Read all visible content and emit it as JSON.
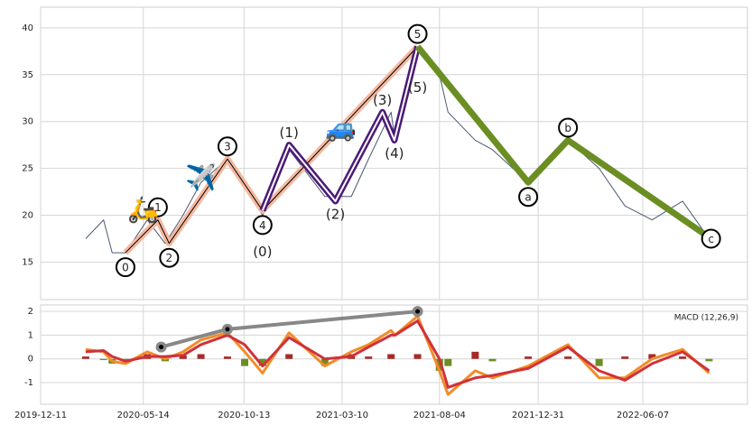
{
  "chart_data": [
    {
      "type": "line",
      "xlim": [
        "2019-12-11",
        "2022-11-12"
      ],
      "ylim": [
        11,
        42.2
      ],
      "yticks": [
        15,
        20,
        25,
        30,
        35,
        40
      ],
      "grid": true,
      "x": [
        "2020-02-17",
        "2020-03-15",
        "2020-03-28",
        "2020-04-17",
        "2020-05-20",
        "2020-06-16",
        "2020-07-13",
        "2020-08-09",
        "2020-09-18",
        "2020-10-14",
        "2020-11-10",
        "2020-12-20",
        "2021-02-12",
        "2021-03-24",
        "2021-04-19",
        "2021-05-23",
        "2021-05-29",
        "2021-07-02",
        "2021-08-04",
        "2021-08-17",
        "2021-09-27",
        "2021-10-23",
        "2021-12-16",
        "2022-02-14",
        "2022-04-02",
        "2022-05-11",
        "2022-06-21",
        "2022-08-06",
        "2022-09-15"
      ],
      "series": [
        {
          "color": "#4a5870",
          "values": [
            17.5,
            19.5,
            16,
            16,
            19.5,
            17,
            20,
            23.5,
            26,
            23,
            20,
            27,
            22,
            22,
            26,
            31,
            28,
            38,
            35,
            31,
            28,
            27,
            23.5,
            28,
            25,
            21,
            19.5,
            21.5,
            17.5
          ]
        }
      ],
      "waves": [
        {
          "color": "#f4b8a0",
          "x": [
            "2020-04-17",
            "2020-06-05",
            "2020-06-22",
            "2020-09-18",
            "2020-11-10",
            "2021-07-02"
          ],
          "values": [
            16,
            19.5,
            17,
            26,
            20.5,
            38
          ],
          "point_labels": [
            "0",
            "1",
            "2",
            "3",
            "4",
            "5"
          ]
        },
        {
          "color": "#4b1a78",
          "x": [
            "2020-11-10",
            "2020-12-20",
            "2021-02-28",
            "2021-05-10",
            "2021-05-28",
            "2021-07-02"
          ],
          "values": [
            20.5,
            27.5,
            21.5,
            31,
            28,
            38
          ],
          "point_labels": [
            "(0)",
            "(1)",
            "(2)",
            "(3)",
            "(4)",
            "(5)"
          ]
        },
        {
          "color": "#6b8e23",
          "x": [
            "2021-07-02",
            "2021-12-16",
            "2022-02-14",
            "2022-09-18"
          ],
          "values": [
            38,
            23.5,
            28,
            17.5
          ],
          "point_labels": [
            null,
            "a",
            "b",
            "c"
          ]
        }
      ],
      "icons": [
        {
          "text": "🛵",
          "x": "2020-05-14",
          "y": 20.5
        },
        {
          "text": "✈️",
          "x": "2020-08-09",
          "y": 23.9
        },
        {
          "text": "🚙",
          "x": "2021-03-08",
          "y": 29.2
        }
      ]
    },
    {
      "type": "macd",
      "title": "MACD (12,26,9)",
      "xlim": [
        "2019-12-11",
        "2022-11-12"
      ],
      "xticks": [
        "2019-12-11",
        "2020-05-14",
        "2020-10-13",
        "2021-03-10",
        "2021-08-04",
        "2021-12-31",
        "2022-06-07"
      ],
      "ylim": [
        -1.91,
        2.27
      ],
      "yticks": [
        -1,
        0,
        1,
        2
      ],
      "grid": true,
      "x": [
        "2020-02-17",
        "2020-03-15",
        "2020-03-28",
        "2020-04-17",
        "2020-05-20",
        "2020-06-16",
        "2020-07-13",
        "2020-08-09",
        "2020-09-18",
        "2020-10-14",
        "2020-11-10",
        "2020-12-20",
        "2021-02-12",
        "2021-03-24",
        "2021-04-19",
        "2021-05-23",
        "2021-05-29",
        "2021-07-02",
        "2021-08-04",
        "2021-08-17",
        "2021-09-27",
        "2021-10-23",
        "2021-12-16",
        "2022-02-14",
        "2022-04-02",
        "2022-05-11",
        "2022-06-21",
        "2022-08-06",
        "2022-09-15"
      ],
      "series": [
        {
          "color": "#f28c28",
          "values": [
            0.4,
            0.3,
            -0.1,
            -0.2,
            0.3,
            0.0,
            0.3,
            0.8,
            1.1,
            0.3,
            -0.6,
            1.1,
            -0.3,
            0.3,
            0.6,
            1.2,
            1.0,
            1.8,
            -0.5,
            -1.5,
            -0.5,
            -0.8,
            -0.3,
            0.6,
            -0.8,
            -0.8,
            0.0,
            0.4,
            -0.6
          ]
        },
        {
          "color": "#d0323a",
          "values": [
            0.3,
            0.35,
            0.1,
            -0.1,
            0.1,
            0.1,
            0.15,
            0.6,
            1.0,
            0.6,
            -0.3,
            0.9,
            0.0,
            0.1,
            0.5,
            1.0,
            1.0,
            1.6,
            0.0,
            -1.2,
            -0.8,
            -0.7,
            -0.4,
            0.5,
            -0.5,
            -0.9,
            -0.2,
            0.3,
            -0.5
          ]
        }
      ],
      "histogram": {
        "positive_color": "#a52a2a",
        "negative_color": "#6b8e23",
        "values": [
          0.1,
          -0.05,
          -0.2,
          -0.1,
          0.2,
          -0.1,
          0.15,
          0.2,
          0.1,
          -0.3,
          -0.3,
          0.2,
          -0.3,
          0.2,
          0.1,
          0.2,
          0.0,
          0.2,
          -0.5,
          -0.3,
          0.3,
          -0.1,
          0.1,
          0.1,
          -0.3,
          0.1,
          0.2,
          0.1,
          -0.1
        ]
      },
      "trend": {
        "color": "#888888",
        "x": [
          "2020-06-10",
          "2020-09-18",
          "2021-07-02"
        ],
        "values": [
          0.5,
          1.25,
          2.0
        ]
      }
    }
  ]
}
